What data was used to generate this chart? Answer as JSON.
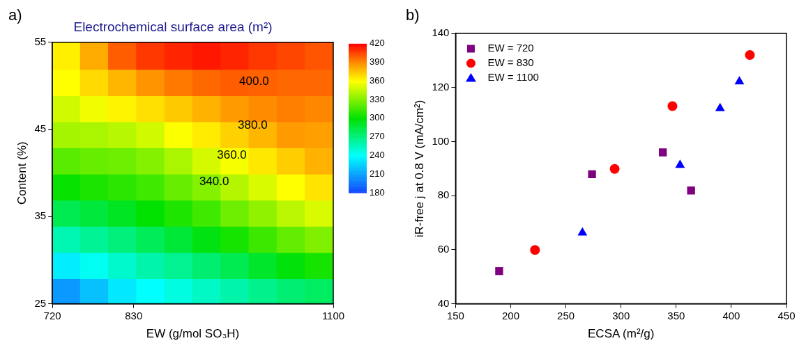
{
  "chart_data": [
    {
      "type": "scatter",
      "title": "Electrochemical surface area (m²)",
      "xlabel": "EW (g/mol SO₃H)",
      "ylabel": "Content (%)",
      "marker": "square",
      "x": [
        739,
        777,
        815,
        853,
        891,
        929,
        967,
        1005,
        1043,
        1081,
        739,
        777,
        815,
        853,
        891,
        929,
        967,
        1005,
        1043,
        1081,
        739,
        777,
        815,
        853,
        891,
        929,
        967,
        1005,
        1043,
        1081,
        739,
        777,
        815,
        853,
        891,
        929,
        967,
        1005,
        1043,
        1081,
        739,
        777,
        815,
        853,
        891,
        929,
        967,
        1005,
        1043,
        1081,
        739,
        777,
        815,
        853,
        891,
        929,
        967,
        1005,
        1043,
        1081,
        739,
        777,
        815,
        853,
        891,
        929,
        967,
        1005,
        1043,
        1081,
        739,
        777,
        815,
        853,
        891,
        929,
        967,
        1005,
        1043,
        1081,
        739,
        777,
        815,
        853,
        891,
        929,
        967,
        1005,
        1043,
        1081,
        739,
        777,
        815,
        853,
        891,
        929,
        967,
        1005,
        1043,
        1081
      ],
      "values": [
        26.5,
        26.5,
        26.5,
        26.5,
        26.5,
        26.5,
        26.5,
        26.5,
        26.5,
        26.5,
        29.5,
        29.5,
        29.5,
        29.5,
        29.5,
        29.5,
        29.5,
        29.5,
        29.5,
        29.5,
        32.5,
        32.5,
        32.5,
        32.5,
        32.5,
        32.5,
        32.5,
        32.5,
        32.5,
        32.5,
        35.5,
        35.5,
        35.5,
        35.5,
        35.5,
        35.5,
        35.5,
        35.5,
        35.5,
        35.5,
        38.5,
        38.5,
        38.5,
        38.5,
        38.5,
        38.5,
        38.5,
        38.5,
        38.5,
        38.5,
        41.5,
        41.5,
        41.5,
        41.5,
        41.5,
        41.5,
        41.5,
        41.5,
        41.5,
        41.5,
        44.5,
        44.5,
        44.5,
        44.5,
        44.5,
        44.5,
        44.5,
        44.5,
        44.5,
        44.5,
        47.5,
        47.5,
        47.5,
        47.5,
        47.5,
        47.5,
        47.5,
        47.5,
        47.5,
        47.5,
        50.5,
        50.5,
        50.5,
        50.5,
        50.5,
        50.5,
        50.5,
        50.5,
        50.5,
        50.5,
        53.5,
        53.5,
        53.5,
        53.5,
        53.5,
        53.5,
        53.5,
        53.5,
        53.5,
        53.5
      ],
      "cvalues": [
        207,
        220,
        233,
        240,
        247,
        254,
        260,
        267,
        273,
        277,
        234,
        243,
        252,
        260,
        266,
        274,
        281,
        290,
        298,
        305,
        258,
        265,
        271,
        279,
        287,
        296,
        305,
        314,
        323,
        330,
        281,
        286,
        292,
        300,
        307,
        315,
        326,
        334,
        344,
        351,
        302,
        306,
        310,
        315,
        324,
        331,
        342,
        351,
        360,
        367,
        321,
        324,
        326,
        331,
        340,
        350,
        358,
        366,
        373,
        380,
        339,
        340,
        343,
        349,
        359,
        365,
        372,
        379,
        386,
        385,
        349,
        357,
        363,
        368,
        374,
        380,
        386,
        390,
        393,
        391,
        360,
        370,
        379,
        388,
        394,
        398,
        400,
        399,
        398,
        398,
        364,
        382,
        400,
        408,
        412,
        415,
        412,
        408,
        405,
        402
      ],
      "clim": [
        180,
        420
      ],
      "cticks": [
        180,
        210,
        240,
        270,
        300,
        330,
        360,
        390,
        420
      ],
      "xlim": [
        720,
        1100
      ],
      "xticks": [
        720,
        830,
        1100
      ],
      "ylim": [
        25,
        55
      ],
      "yticks": [
        25,
        35,
        45,
        55
      ],
      "annotations": [
        "a)",
        "400.0",
        "380.0",
        "360.0",
        "340.0"
      ]
    },
    {
      "type": "scatter",
      "xlabel": "ECSA (m²/g)",
      "ylabel": "iR-free j at 0.8 V (mA/cm²)",
      "legend": "top left",
      "xlim": [
        150,
        450
      ],
      "xticks": [
        150,
        200,
        250,
        300,
        350,
        400,
        450
      ],
      "ylim": [
        40,
        140
      ],
      "yticks": [
        40,
        60,
        80,
        100,
        120,
        140
      ],
      "annotations": [
        "b)"
      ],
      "series": [
        {
          "name": "EW = 720",
          "color": "#800080",
          "marker": "square",
          "x": [
            189.5,
            273.7,
            337.9,
            363.5
          ],
          "values": [
            52.1,
            87.9,
            96.0,
            81.9
          ]
        },
        {
          "name": "EW = 830",
          "color": "#ff0000",
          "marker": "circle",
          "x": [
            222,
            294.2,
            346.6,
            416.8
          ],
          "values": [
            59.9,
            89.9,
            113.1,
            132.0
          ]
        },
        {
          "name": "EW = 1100",
          "color": "#0000ff",
          "marker": "triangle",
          "x": [
            265,
            353.5,
            389.8,
            407.3
          ],
          "values": [
            66.3,
            91.3,
            112.3,
            122.2
          ]
        }
      ]
    }
  ]
}
